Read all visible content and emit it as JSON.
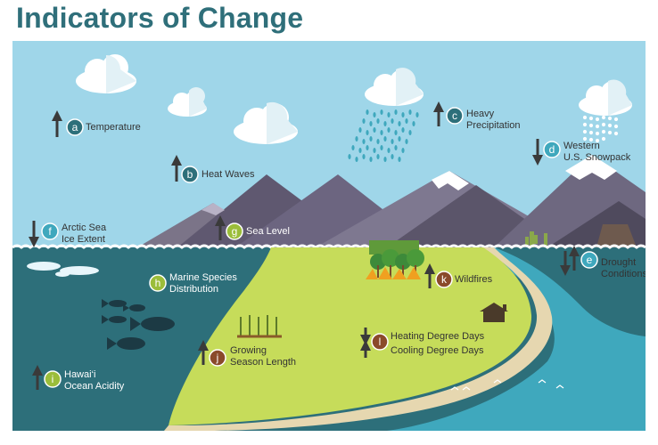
{
  "title": "Indicators of Change",
  "colors": {
    "title": "#2f6f7a",
    "sky": "#9fd6e9",
    "ocean": "#2d6f7a",
    "land": "#c6dc5a",
    "desert": "#d0a76a",
    "badge_blue": "#3fa8bd",
    "badge_green": "#9bbd3a",
    "badge_brown": "#8a4a2a",
    "badge_dark": "#2d6f7a"
  },
  "indicators": [
    {
      "letter": "a",
      "trend": "up",
      "label": "Temperature",
      "badge_color": "badge_dark"
    },
    {
      "letter": "b",
      "trend": "up",
      "label": "Heat Waves",
      "badge_color": "badge_dark"
    },
    {
      "letter": "c",
      "trend": "up",
      "label_lines": [
        "Heavy",
        "Precipitation"
      ],
      "badge_color": "badge_dark"
    },
    {
      "letter": "d",
      "trend": "down",
      "label_lines": [
        "Western",
        "U.S. Snowpack"
      ],
      "badge_color": "badge_blue"
    },
    {
      "letter": "e",
      "trend": "up-down",
      "label_lines": [
        "Drought",
        "Conditions"
      ],
      "badge_color": "badge_blue"
    },
    {
      "letter": "f",
      "trend": "down",
      "label_lines": [
        "Arctic Sea",
        "Ice Extent"
      ],
      "badge_color": "badge_blue"
    },
    {
      "letter": "g",
      "trend": "up",
      "label": "Sea Level",
      "badge_color": "badge_green"
    },
    {
      "letter": "h",
      "label_lines": [
        "Marine Species",
        "Distribution"
      ],
      "badge_color": "badge_green"
    },
    {
      "letter": "i",
      "trend": "up",
      "label_lines": [
        "Hawai‘i",
        "Ocean Acidity"
      ],
      "badge_color": "badge_green"
    },
    {
      "letter": "j",
      "trend": "up",
      "label_lines": [
        "Growing",
        "Season Length"
      ],
      "badge_color": "badge_brown"
    },
    {
      "letter": "k",
      "trend": "up",
      "label": "Wildfires",
      "badge_color": "badge_brown"
    },
    {
      "letter": "l",
      "trend": "down-up",
      "label_lines": [
        "Heating Degree Days",
        "Cooling Degree Days"
      ],
      "badge_color": "badge_brown"
    }
  ]
}
